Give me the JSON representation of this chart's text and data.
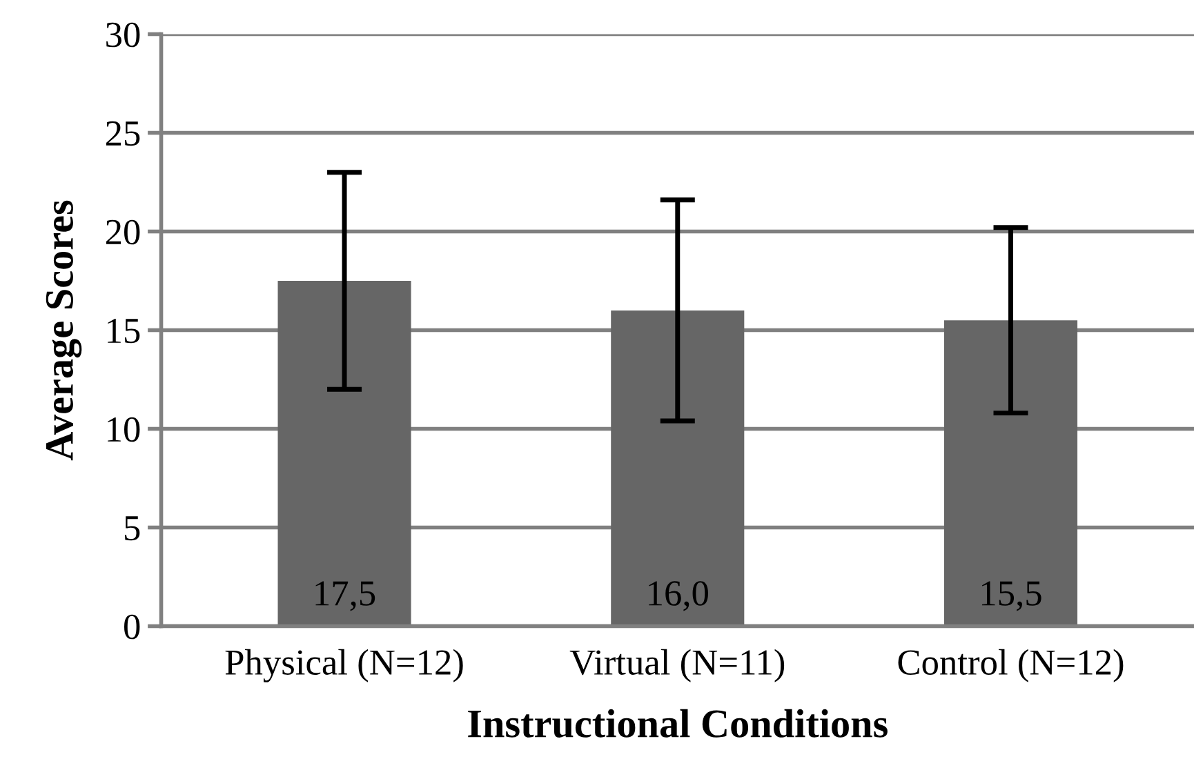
{
  "chart_data": {
    "type": "bar",
    "xlabel": "Instructional Conditions",
    "ylabel": "Average Scores",
    "categories": [
      "Physical (N=12)",
      "Virtual (N=11)",
      "Control (N=12)"
    ],
    "values": [
      17.5,
      16.0,
      15.5
    ],
    "errors": [
      5.5,
      5.6,
      4.7
    ],
    "value_labels": [
      "17,5",
      "16,0",
      "15,5"
    ],
    "color": "#666666",
    "ylim": [
      0,
      30
    ],
    "yticks": [
      0,
      5,
      10,
      15,
      20,
      25,
      30
    ],
    "grid": "y",
    "legend": false
  }
}
